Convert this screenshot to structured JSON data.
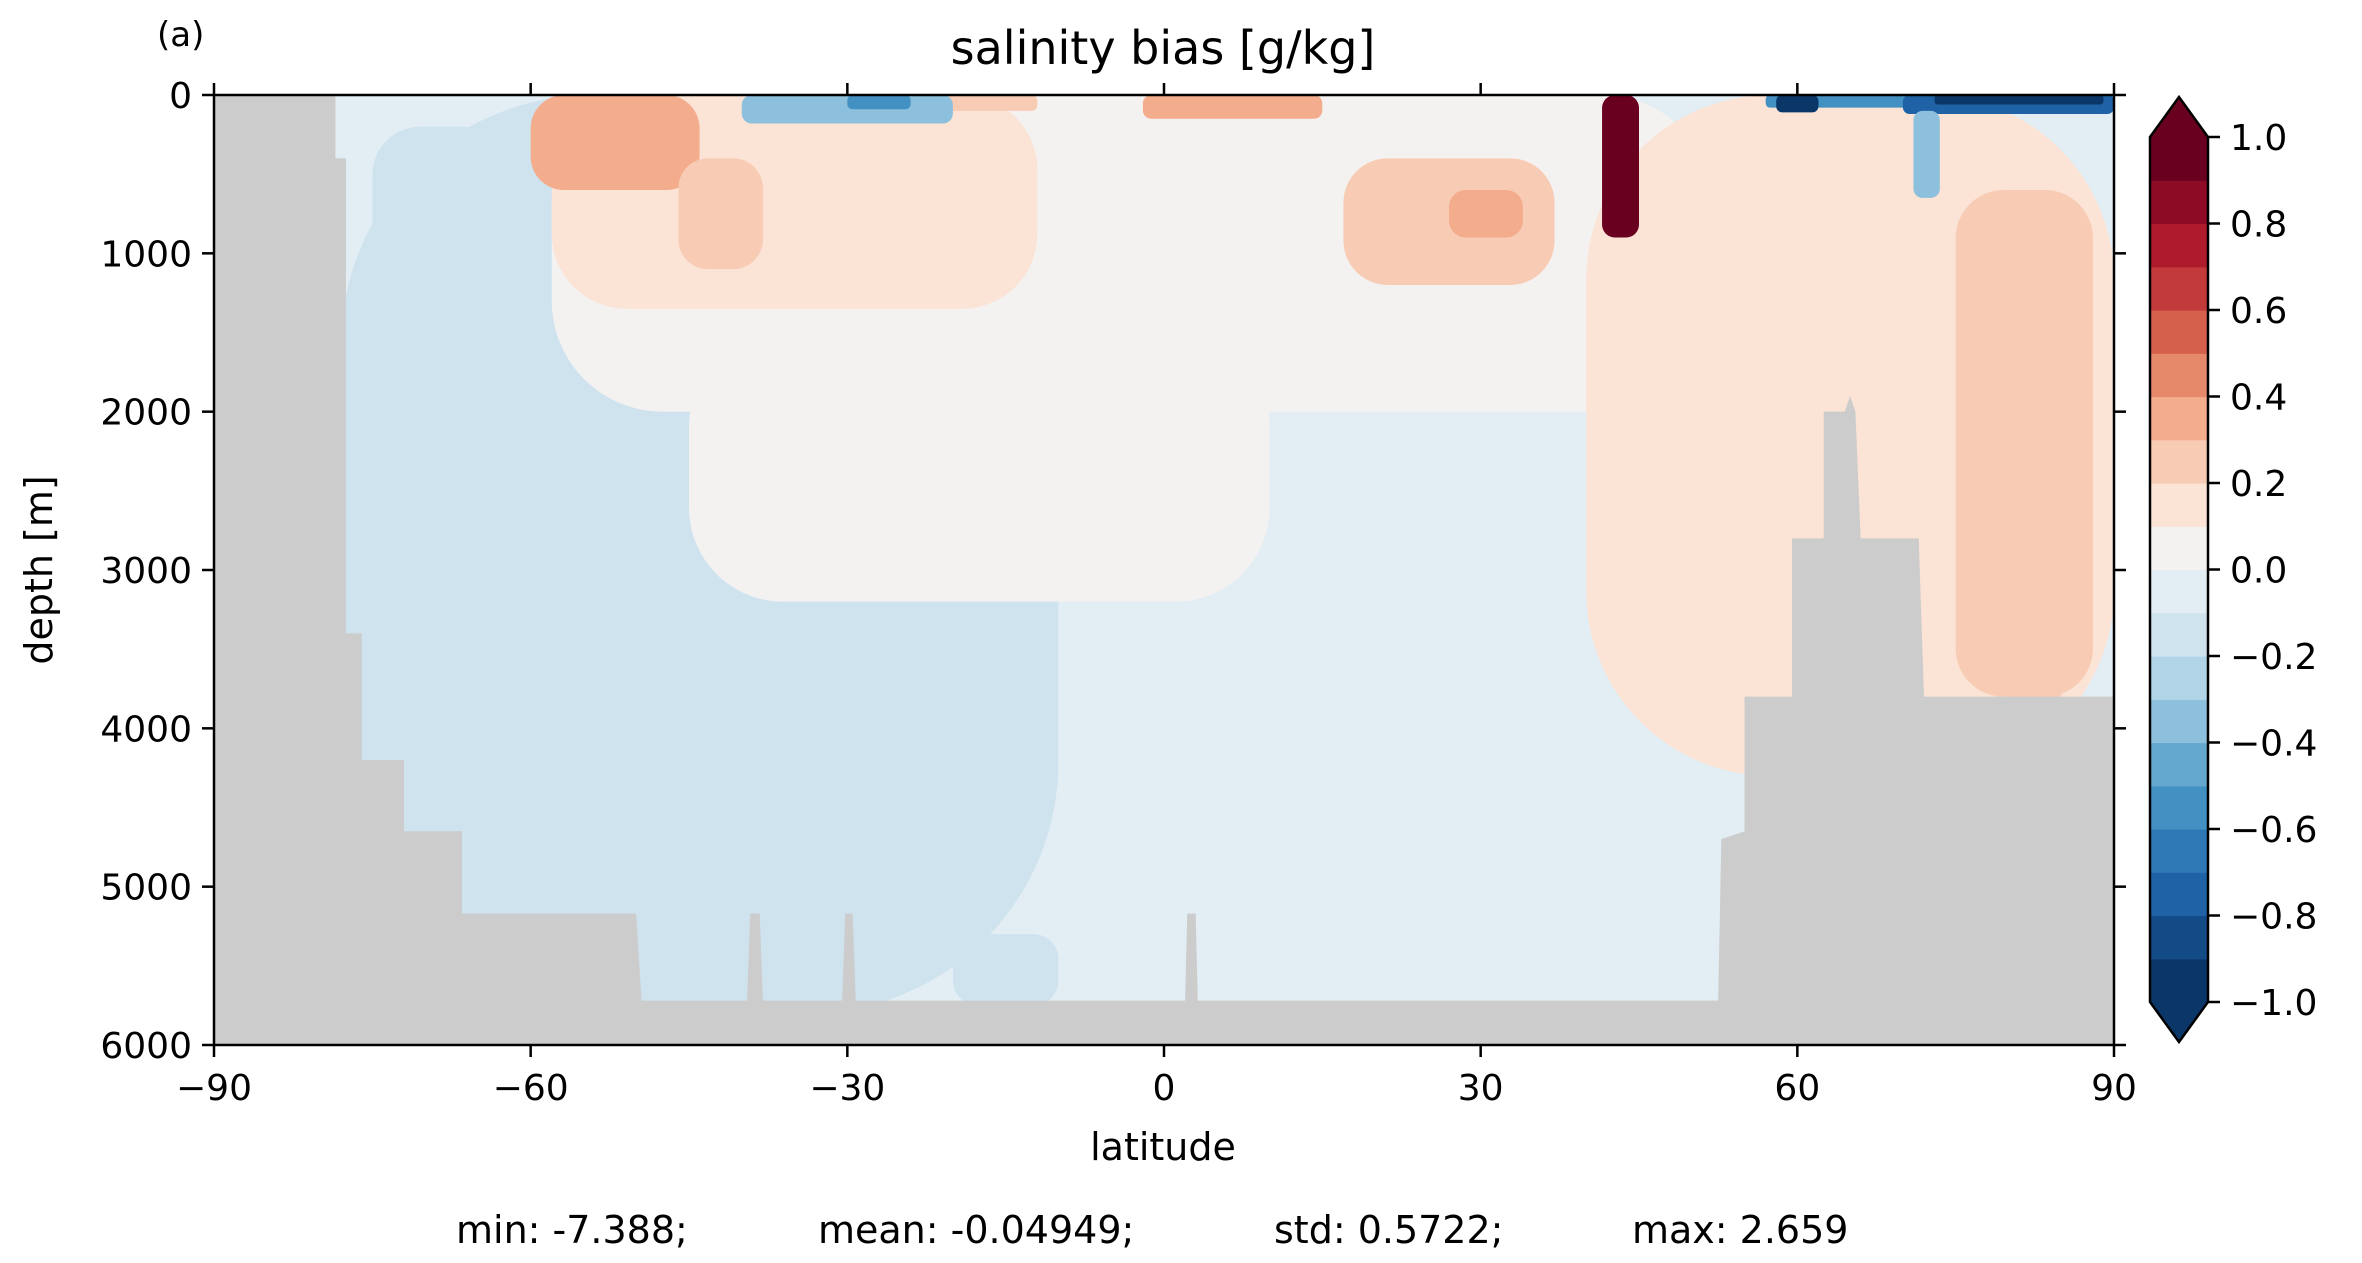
{
  "chart_data": {
    "type": "heatmap",
    "panel_label": "(a)",
    "title": "salinity bias [g/kg]",
    "xlabel": "latitude",
    "ylabel": "depth [m]",
    "xlim": [
      -90,
      90
    ],
    "ylim": [
      6000,
      0
    ],
    "x_ticks": [
      -90,
      -60,
      -30,
      0,
      30,
      60,
      90
    ],
    "x_tick_labels": [
      "−90",
      "−60",
      "−30",
      "0",
      "30",
      "60",
      "90"
    ],
    "y_ticks": [
      0,
      1000,
      2000,
      3000,
      4000,
      5000,
      6000
    ],
    "y_tick_labels": [
      "0",
      "1000",
      "2000",
      "3000",
      "4000",
      "5000",
      "6000"
    ],
    "colorbar": {
      "min": -1.0,
      "max": 1.0,
      "step": 0.1,
      "extend": "both",
      "tick_values": [
        1.0,
        0.8,
        0.6,
        0.4,
        0.2,
        0.0,
        -0.2,
        -0.4,
        -0.6,
        -0.8,
        -1.0
      ],
      "tick_labels": [
        "1.0",
        "0.8",
        "0.6",
        "0.4",
        "0.2",
        "0.0",
        "−0.2",
        "−0.4",
        "−0.6",
        "−0.8",
        "−1.0"
      ],
      "colors": [
        "#0a3668",
        "#134b87",
        "#1f62a5",
        "#2e78b6",
        "#4390c2",
        "#65a8cf",
        "#8dc0dd",
        "#b1d5e7",
        "#cfe3ef",
        "#e3eef4",
        "#f4f2f1",
        "#fbe3d6",
        "#f8ccb4",
        "#f3ad8d",
        "#e6896b",
        "#d5604c",
        "#c33a3b",
        "#ad1b2d",
        "#8e0b26",
        "#6a0020"
      ]
    },
    "land_color": "#cccccc",
    "background_value": -0.02,
    "field_regions": [
      {
        "lat": [
          -78,
          -10
        ],
        "depth": [
          0,
          5800
        ],
        "value": -0.12
      },
      {
        "lat": [
          -75,
          -62
        ],
        "depth": [
          200,
          5100
        ],
        "value": -0.14
      },
      {
        "lat": [
          -58,
          52
        ],
        "depth": [
          0,
          2000
        ],
        "value": 0.05
      },
      {
        "lat": [
          -45,
          10
        ],
        "depth": [
          1500,
          3200
        ],
        "value": 0.05
      },
      {
        "lat": [
          40,
          90
        ],
        "depth": [
          0,
          4300
        ],
        "value": 0.12
      },
      {
        "lat": [
          75,
          88
        ],
        "depth": [
          600,
          3800
        ],
        "value": 0.22
      },
      {
        "lat": [
          -58,
          -12
        ],
        "depth": [
          0,
          1350
        ],
        "value": 0.18
      },
      {
        "lat": [
          -60,
          -44
        ],
        "depth": [
          0,
          600
        ],
        "value": 0.3
      },
      {
        "lat": [
          -46,
          -38
        ],
        "depth": [
          400,
          1100
        ],
        "value": 0.28
      },
      {
        "lat": [
          -2,
          15
        ],
        "depth": [
          0,
          150
        ],
        "value": 0.3
      },
      {
        "lat": [
          -22,
          -12
        ],
        "depth": [
          0,
          100
        ],
        "value": 0.28
      },
      {
        "lat": [
          17,
          37
        ],
        "depth": [
          400,
          1200
        ],
        "value": 0.25
      },
      {
        "lat": [
          27,
          34
        ],
        "depth": [
          600,
          900
        ],
        "value": 0.38
      },
      {
        "lat": [
          -20,
          -10
        ],
        "depth": [
          5300,
          5750
        ],
        "value": -0.12
      },
      {
        "lat": [
          -40,
          -20
        ],
        "depth": [
          0,
          180
        ],
        "value": -0.32
      },
      {
        "lat": [
          -30,
          -24
        ],
        "depth": [
          0,
          90
        ],
        "value": -0.55
      },
      {
        "lat": [
          57,
          90
        ],
        "depth": [
          0,
          80
        ],
        "value": -0.55
      },
      {
        "lat": [
          70,
          90
        ],
        "depth": [
          0,
          120
        ],
        "value": -0.75
      },
      {
        "lat": [
          73,
          89
        ],
        "depth": [
          0,
          60
        ],
        "value": -0.95
      },
      {
        "lat": [
          71,
          73.5
        ],
        "depth": [
          100,
          650
        ],
        "value": -0.35
      },
      {
        "lat": [
          58,
          62
        ],
        "depth": [
          0,
          110
        ],
        "value": -0.95
      },
      {
        "lat": [
          41.5,
          45
        ],
        "depth": [
          0,
          900
        ],
        "value": 1.2
      },
      {
        "lat": [
          80,
          85
        ],
        "depth": [
          3500,
          4200
        ],
        "value": 0.28
      }
    ],
    "land_polygon": [
      [
        -90,
        0
      ],
      [
        -78.5,
        0
      ],
      [
        -78.5,
        400
      ],
      [
        -77.5,
        400
      ],
      [
        -77.5,
        3400
      ],
      [
        -76,
        3400
      ],
      [
        -76,
        4200
      ],
      [
        -72,
        4200
      ],
      [
        -72,
        4650
      ],
      [
        -66.5,
        4650
      ],
      [
        -66.5,
        5170
      ],
      [
        -50,
        5170
      ],
      [
        -49.5,
        5720
      ],
      [
        -39.5,
        5720
      ],
      [
        -39.2,
        5170
      ],
      [
        -38.3,
        5170
      ],
      [
        -38,
        5720
      ],
      [
        -30.5,
        5720
      ],
      [
        -30.2,
        5170
      ],
      [
        -29.5,
        5170
      ],
      [
        -29.2,
        5720
      ],
      [
        2,
        5720
      ],
      [
        2.2,
        5170
      ],
      [
        3,
        5170
      ],
      [
        3.2,
        5720
      ],
      [
        52.5,
        5720
      ],
      [
        52.8,
        4700
      ],
      [
        55,
        4650
      ],
      [
        55,
        3800
      ],
      [
        59.5,
        3800
      ],
      [
        59.5,
        2800
      ],
      [
        62.5,
        2800
      ],
      [
        62.5,
        2000
      ],
      [
        64.5,
        2000
      ],
      [
        65,
        1900
      ],
      [
        65.5,
        2000
      ],
      [
        66,
        2800
      ],
      [
        71.5,
        2800
      ],
      [
        72,
        3800
      ],
      [
        90,
        3800
      ],
      [
        90,
        6000
      ],
      [
        -90,
        6000
      ]
    ],
    "stats_text": {
      "min": "min: -7.388;",
      "mean": "mean: -0.04949;",
      "std": "std: 0.5722;",
      "max": "max: 2.659"
    }
  }
}
